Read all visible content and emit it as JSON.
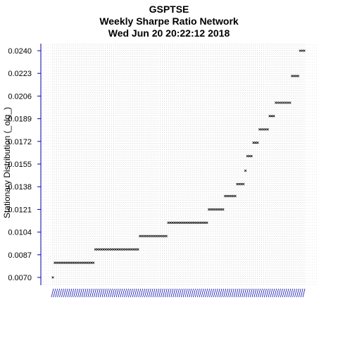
{
  "chart_data": {
    "type": "scatter",
    "title": [
      "GSPTSE",
      "Weekly  Sharpe Ratio Network",
      "Wed Jun 20 20:22:12 2018"
    ],
    "xlabel": "",
    "ylabel": "Stationary Distribution (_olg_)",
    "y_ticks": [
      "0.0070",
      "0.0087",
      "0.0104",
      "0.0121",
      "0.0138",
      "0.0155",
      "0.0172",
      "0.0189",
      "0.0206",
      "0.0223",
      "0.0240"
    ],
    "ylim": [
      0.007,
      0.024
    ],
    "grid": true,
    "marker": "x",
    "points_per_level": [
      {
        "value": 0.007,
        "count": 1
      },
      {
        "value": 0.0081,
        "count": 20
      },
      {
        "value": 0.0091,
        "count": 22
      },
      {
        "value": 0.0101,
        "count": 14
      },
      {
        "value": 0.0111,
        "count": 20
      },
      {
        "value": 0.0121,
        "count": 8
      },
      {
        "value": 0.0131,
        "count": 6
      },
      {
        "value": 0.014,
        "count": 4
      },
      {
        "value": 0.015,
        "count": 1
      },
      {
        "value": 0.0161,
        "count": 3
      },
      {
        "value": 0.0171,
        "count": 3
      },
      {
        "value": 0.0181,
        "count": 5
      },
      {
        "value": 0.0191,
        "count": 3
      },
      {
        "value": 0.0201,
        "count": 8
      },
      {
        "value": 0.0221,
        "count": 4
      },
      {
        "value": 0.024,
        "count": 3
      }
    ]
  }
}
